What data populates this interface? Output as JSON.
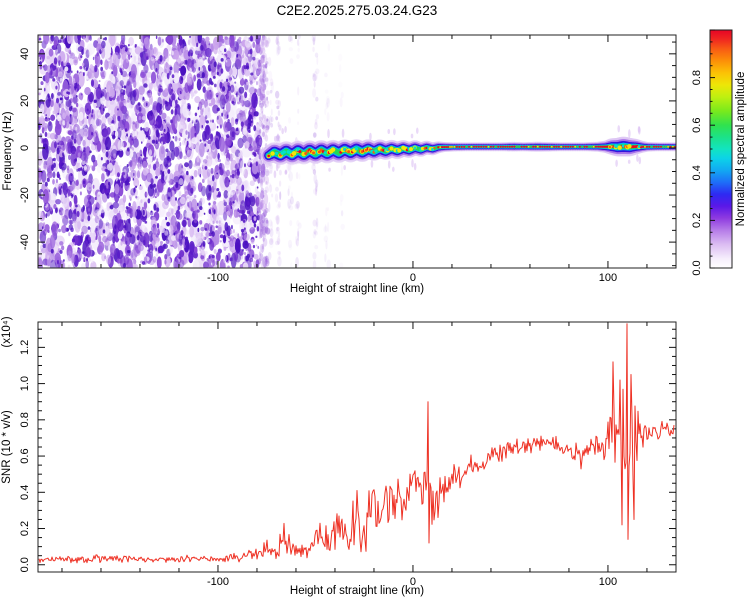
{
  "title": "C2E2.2025.275.03.24.G23",
  "colorbar": {
    "label": "Normalized spectral amplitude",
    "tick_labels": [
      "0.0",
      "0.2",
      "0.4",
      "0.6",
      "0.8"
    ],
    "tick_values": [
      0,
      0.2,
      0.4,
      0.6,
      0.8
    ],
    "range": [
      0,
      1
    ],
    "gradient": [
      [
        0,
        "#ffffff"
      ],
      [
        0.04,
        "#f6eefc"
      ],
      [
        0.1,
        "#dbbcf2"
      ],
      [
        0.16,
        "#b57ae8"
      ],
      [
        0.21,
        "#8e3ae0"
      ],
      [
        0.26,
        "#5a18e8"
      ],
      [
        0.31,
        "#2e2af2"
      ],
      [
        0.36,
        "#1e6ef8"
      ],
      [
        0.41,
        "#12a8f2"
      ],
      [
        0.46,
        "#0cd2e8"
      ],
      [
        0.5,
        "#12e4c0"
      ],
      [
        0.55,
        "#1ce288"
      ],
      [
        0.6,
        "#30e24e"
      ],
      [
        0.66,
        "#7aea1c"
      ],
      [
        0.72,
        "#c0f010"
      ],
      [
        0.77,
        "#eee607"
      ],
      [
        0.82,
        "#fcc205"
      ],
      [
        0.87,
        "#fc9008"
      ],
      [
        0.92,
        "#f85c14"
      ],
      [
        0.96,
        "#f02820"
      ],
      [
        1,
        "#e60426"
      ]
    ]
  },
  "chart_data": [
    {
      "id": "spectrogram",
      "type": "heatmap",
      "xlabel": "Height of straight line (km)",
      "ylabel": "Frequency (Hz)",
      "xlim": [
        -192.3,
        134.9
      ],
      "ylim": [
        -51,
        48
      ],
      "x_major": {
        "values": [
          -100,
          0,
          100
        ],
        "labels": [
          "-100",
          "0",
          "100"
        ]
      },
      "x_minor_step": 20,
      "y_major": {
        "values": [
          -40,
          -20,
          0,
          20,
          40
        ],
        "labels": [
          "-40",
          "-20",
          "0",
          "20",
          "40"
        ]
      },
      "y_minor_step": 5,
      "noise_field": {
        "x_range_km": [
          -192,
          -79
        ],
        "count": 2400,
        "dark_count": 300,
        "light_count": 420,
        "edge_count": 140,
        "palette": [
          "#f3ecfb",
          "#e8d8f8",
          "#d9bcf2",
          "#c9a2ec",
          "#b488e6",
          "#9e68de",
          "#8848d6",
          "#7030ce",
          "#5a1ac8",
          "#4a10c0"
        ]
      },
      "faint_columns": [
        [
          -77.5,
          0.95
        ],
        [
          -73,
          0.4
        ],
        [
          -69,
          0.55
        ],
        [
          -63,
          0.3
        ],
        [
          -59,
          0.35
        ],
        [
          -50,
          0.5
        ],
        [
          -44,
          0.25
        ],
        [
          -37,
          0.2
        ]
      ],
      "echo_trace": {
        "points": [
          [
            -74,
            -3.2,
            0.75
          ],
          [
            -71,
            -1.8,
            1
          ],
          [
            -68,
            -3,
            1
          ],
          [
            -65,
            -1.4,
            1
          ],
          [
            -62,
            -2.9,
            1
          ],
          [
            -59,
            -1.2,
            1
          ],
          [
            -56,
            -2.7,
            1
          ],
          [
            -53,
            -1,
            1
          ],
          [
            -50,
            -2.5,
            1
          ],
          [
            -47,
            -0.9,
            1
          ],
          [
            -44,
            -2.3,
            1
          ],
          [
            -41,
            -0.8,
            1
          ],
          [
            -38,
            -2.1,
            1
          ],
          [
            -35,
            -0.6,
            1
          ],
          [
            -32,
            -1.9,
            1
          ],
          [
            -29,
            -0.5,
            1
          ],
          [
            -26,
            -1.7,
            1
          ],
          [
            -23,
            -0.4,
            0.95
          ],
          [
            -20,
            -1.5,
            0.9
          ],
          [
            -17,
            -0.3,
            0.9
          ],
          [
            -14,
            -1.3,
            0.85
          ],
          [
            -11,
            -0.2,
            0.8
          ],
          [
            -8,
            -1.1,
            0.8
          ],
          [
            -5,
            -0.1,
            0.75
          ],
          [
            -2,
            -0.9,
            0.7
          ],
          [
            1,
            0.1,
            0.65
          ],
          [
            4,
            -0.7,
            0.6
          ],
          [
            7,
            0.2,
            0.55
          ],
          [
            10,
            -0.4,
            0.5
          ],
          [
            13,
            0.3,
            0.42
          ],
          [
            16,
            0.4,
            0.3
          ],
          [
            20,
            0.45,
            0.24
          ],
          [
            30,
            0.5,
            0.22
          ],
          [
            45,
            0.5,
            0.22
          ],
          [
            52,
            0.55,
            0.28
          ],
          [
            57,
            0.5,
            0.24
          ],
          [
            64,
            0.55,
            0.3
          ],
          [
            70,
            0.5,
            0.26
          ],
          [
            76,
            0.5,
            0.22
          ],
          [
            88,
            0.5,
            0.22
          ],
          [
            95,
            0.55,
            0.3
          ],
          [
            99,
            0.5,
            0.45
          ],
          [
            102,
            0.6,
            0.75
          ],
          [
            105,
            0.35,
            0.9
          ],
          [
            108,
            0.65,
            1
          ],
          [
            111,
            0.35,
            0.9
          ],
          [
            114,
            0.55,
            0.7
          ],
          [
            117,
            0.5,
            0.45
          ],
          [
            120,
            0.5,
            0.28
          ],
          [
            126,
            0.5,
            0.22
          ],
          [
            134.5,
            0.5,
            0.22
          ]
        ],
        "layers": [
          {
            "color": "#ddc6f4",
            "base": 6,
            "scale": 14,
            "opacity": 0.65
          },
          {
            "color": "#a670e8",
            "base": 4.6,
            "scale": 10.4,
            "opacity": 0.8
          },
          {
            "color": "#3214dc",
            "base": 3.4,
            "scale": 7.6,
            "opacity": 1
          },
          {
            "color": "#00b8f2",
            "base": 2.4,
            "scale": 5.2,
            "opacity": 1
          },
          {
            "color": "#22d858",
            "base": 1.7,
            "scale": 3.7,
            "opacity": 1
          }
        ],
        "core": {
          "color": "#ea0626",
          "base": 1.7,
          "scale": 1.3,
          "start_km": 13
        },
        "speckle_colors": {
          "yellow": "#f2e60a",
          "red": "#ea0820",
          "orange": "#f55a10",
          "cyan": "#00e0d0",
          "green_dash": "#28e050"
        },
        "whisker_color": "#d9bcf2"
      }
    },
    {
      "id": "snr",
      "type": "line",
      "xlabel": "Height of straight line (km)",
      "ylabel": "SNR (10 * v/v)",
      "scale_note": "(x10⁴)",
      "line_color": "#ee3124",
      "xlim": [
        -192.3,
        134.9
      ],
      "ylim": [
        -0.04,
        1.34
      ],
      "x_major": {
        "values": [
          -100,
          0,
          100
        ],
        "labels": [
          "-100",
          "0",
          "100"
        ]
      },
      "x_minor_step": 20,
      "y_major": {
        "values": [
          0,
          0.2,
          0.4,
          0.6,
          0.8,
          1.0,
          1.2
        ],
        "labels": [
          "0.0",
          "0.2",
          "0.4",
          "0.6",
          "0.8",
          "1.0",
          "1.2"
        ]
      },
      "y_minor_step": 0.05,
      "envelope": [
        [
          -192,
          0.028,
          0.022
        ],
        [
          -170,
          0.03,
          0.022
        ],
        [
          -160,
          0.035,
          0.028
        ],
        [
          -150,
          0.03,
          0.022
        ],
        [
          -135,
          0.028,
          0.02
        ],
        [
          -120,
          0.032,
          0.025
        ],
        [
          -108,
          0.03,
          0.022
        ],
        [
          -95,
          0.035,
          0.028
        ],
        [
          -85,
          0.045,
          0.035
        ],
        [
          -78,
          0.07,
          0.05
        ],
        [
          -74,
          0.1,
          0.07
        ],
        [
          -70,
          0.07,
          0.05
        ],
        [
          -66,
          0.14,
          0.1
        ],
        [
          -62,
          0.12,
          0.09
        ],
        [
          -58,
          0.06,
          0.045
        ],
        [
          -54,
          0.08,
          0.06
        ],
        [
          -49,
          0.15,
          0.12
        ],
        [
          -44,
          0.12,
          0.1
        ],
        [
          -40,
          0.2,
          0.17
        ],
        [
          -36,
          0.22,
          0.2
        ],
        [
          -32,
          0.18,
          0.16
        ],
        [
          -28,
          0.25,
          0.2
        ],
        [
          -24,
          0.25,
          0.22
        ],
        [
          -20,
          0.3,
          0.22
        ],
        [
          -16,
          0.28,
          0.2
        ],
        [
          -12,
          0.33,
          0.18
        ],
        [
          -8,
          0.38,
          0.15
        ],
        [
          -4,
          0.38,
          0.14
        ],
        [
          0,
          0.42,
          0.13
        ],
        [
          4,
          0.44,
          0.12
        ],
        [
          7,
          0.42,
          0.18
        ],
        [
          9,
          0.3,
          0.25
        ],
        [
          11,
          0.32,
          0.18
        ],
        [
          14,
          0.4,
          0.13
        ],
        [
          18,
          0.45,
          0.1
        ],
        [
          24,
          0.5,
          0.09
        ],
        [
          30,
          0.54,
          0.08
        ],
        [
          38,
          0.58,
          0.07
        ],
        [
          48,
          0.63,
          0.06
        ],
        [
          58,
          0.65,
          0.055
        ],
        [
          68,
          0.67,
          0.05
        ],
        [
          76,
          0.66,
          0.055
        ],
        [
          82,
          0.62,
          0.07
        ],
        [
          86,
          0.6,
          0.08
        ],
        [
          90,
          0.64,
          0.06
        ],
        [
          94,
          0.66,
          0.06
        ],
        [
          98,
          0.64,
          0.1
        ],
        [
          101,
          0.66,
          0.22
        ],
        [
          104,
          0.68,
          0.38
        ],
        [
          107,
          0.7,
          0.5
        ],
        [
          110,
          0.68,
          0.55
        ],
        [
          113,
          0.66,
          0.42
        ],
        [
          115,
          0.7,
          0.25
        ],
        [
          117,
          0.72,
          0.12
        ],
        [
          120,
          0.73,
          0.07
        ],
        [
          125,
          0.74,
          0.06
        ],
        [
          130,
          0.75,
          0.05
        ],
        [
          135,
          0.76,
          0.05
        ]
      ],
      "spikes": [
        [
          7.8,
          0.9
        ],
        [
          8.4,
          0.12
        ],
        [
          102.6,
          1.12
        ],
        [
          106.2,
          1.02
        ],
        [
          107.2,
          0.22
        ],
        [
          109.7,
          1.33
        ],
        [
          110.3,
          0.14
        ],
        [
          111.8,
          1.05
        ],
        [
          113.3,
          0.25
        ]
      ]
    }
  ]
}
